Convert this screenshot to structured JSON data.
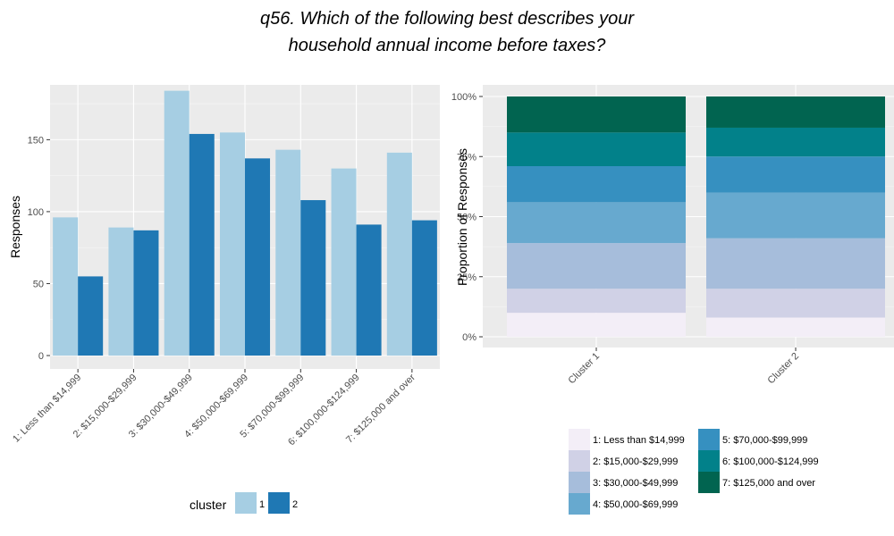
{
  "title_lines": [
    "q56. Which of the following best describes your",
    "household annual income before taxes?"
  ],
  "chart_data": [
    {
      "type": "bar",
      "title": "",
      "xlabel": "",
      "ylabel": "Responses",
      "ylim": [
        0,
        185
      ],
      "yticks": [
        0,
        50,
        100,
        150
      ],
      "grid": true,
      "categories": [
        "1: Less than $14,999",
        "2: $15,000-$29,999",
        "3: $30,000-$49,999",
        "4: $50,000-$69,999",
        "5: $70,000-$99,999",
        "6: $100,000-$124,999",
        "7: $125,000 and over"
      ],
      "series": [
        {
          "name": "1",
          "color": "#a6cee3",
          "values": [
            96,
            89,
            184,
            155,
            143,
            130,
            141
          ]
        },
        {
          "name": "2",
          "color": "#1f78b4",
          "values": [
            55,
            87,
            154,
            137,
            108,
            91,
            94
          ]
        }
      ],
      "legend": {
        "title": "cluster",
        "position": "bottom"
      }
    },
    {
      "type": "bar",
      "stacked": true,
      "title": "",
      "xlabel": "",
      "ylabel": "Proportion of Responses",
      "ylim": [
        0,
        1
      ],
      "yticks": [
        "0%",
        "25%",
        "50%",
        "75%",
        "100%"
      ],
      "grid": true,
      "categories": [
        "Cluster 1",
        "Cluster 2"
      ],
      "series": [
        {
          "name": "1: Less than $14,999",
          "color": "#f3eef7",
          "values": [
            0.1,
            0.08
          ]
        },
        {
          "name": "2: $15,000-$29,999",
          "color": "#d0d1e6",
          "values": [
            0.1,
            0.12
          ]
        },
        {
          "name": "3: $30,000-$49,999",
          "color": "#a6bddb",
          "values": [
            0.19,
            0.21
          ]
        },
        {
          "name": "4: $50,000-$69,999",
          "color": "#67a9cf",
          "values": [
            0.17,
            0.19
          ]
        },
        {
          "name": "5: $70,000-$99,999",
          "color": "#3690c0",
          "values": [
            0.15,
            0.15
          ]
        },
        {
          "name": "6: $100,000-$124,999",
          "color": "#02818a",
          "values": [
            0.14,
            0.12
          ]
        },
        {
          "name": "7: $125,000 and over",
          "color": "#016450",
          "values": [
            0.15,
            0.13
          ]
        }
      ],
      "legend": {
        "position": "bottom"
      }
    }
  ]
}
